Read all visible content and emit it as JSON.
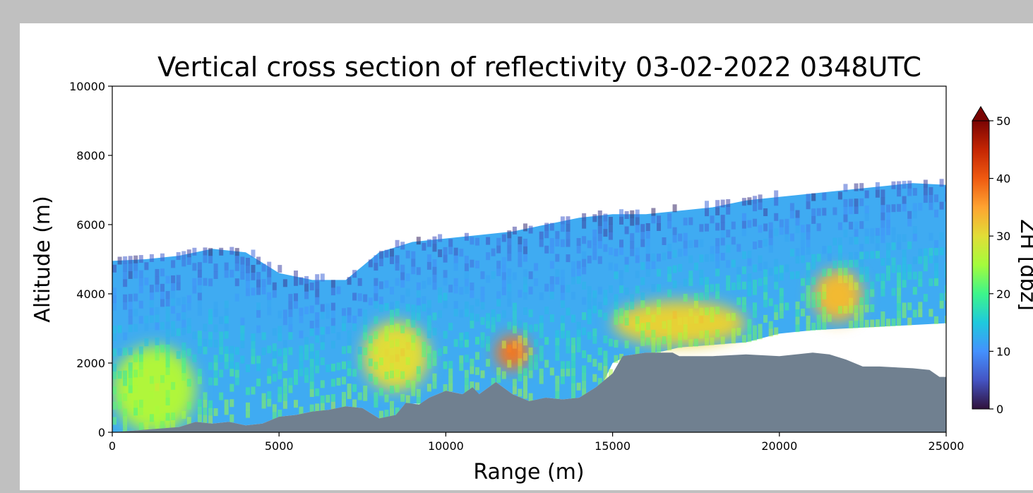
{
  "chart_data": {
    "type": "heatmap",
    "title": "Vertical cross section of reflectivity 03-02-2022 0348UTC",
    "xlabel": "Range (m)",
    "ylabel": "Altitude (m)",
    "xlim": [
      0,
      25000
    ],
    "ylim": [
      0,
      10000
    ],
    "xticks": [
      "0",
      "5000",
      "10000",
      "15000",
      "20000",
      "25000"
    ],
    "yticks": [
      "0",
      "2000",
      "4000",
      "6000",
      "8000",
      "10000"
    ],
    "colorbar": {
      "label": "ZH [dbz]",
      "range": [
        0,
        50
      ],
      "ticks": [
        "0",
        "10",
        "20",
        "30",
        "40",
        "50"
      ],
      "extend": "max",
      "colormap": "turbo",
      "colors": [
        "#30123b",
        "#4454c4",
        "#4491fe",
        "#1fc9dd",
        "#3df58b",
        "#a4fc3c",
        "#e1dd37",
        "#fea331",
        "#ef5a11",
        "#c42503",
        "#7a0403"
      ]
    },
    "terrain_color": "#708090",
    "terrain": [
      [
        0,
        0
      ],
      [
        2000,
        150
      ],
      [
        2500,
        300
      ],
      [
        3000,
        250
      ],
      [
        3500,
        300
      ],
      [
        4000,
        200
      ],
      [
        4500,
        250
      ],
      [
        5000,
        450
      ],
      [
        5500,
        500
      ],
      [
        6000,
        600
      ],
      [
        6500,
        650
      ],
      [
        7000,
        750
      ],
      [
        7500,
        700
      ],
      [
        8000,
        400
      ],
      [
        8500,
        500
      ],
      [
        8800,
        850
      ],
      [
        9200,
        800
      ],
      [
        9500,
        1000
      ],
      [
        10000,
        1200
      ],
      [
        10500,
        1100
      ],
      [
        10800,
        1300
      ],
      [
        11000,
        1100
      ],
      [
        11500,
        1450
      ],
      [
        12000,
        1100
      ],
      [
        12500,
        900
      ],
      [
        13000,
        1000
      ],
      [
        13500,
        950
      ],
      [
        14000,
        1000
      ],
      [
        14500,
        1300
      ],
      [
        15000,
        1700
      ],
      [
        15300,
        2200
      ],
      [
        16000,
        2300
      ],
      [
        16800,
        2300
      ],
      [
        17000,
        2200
      ],
      [
        18000,
        2200
      ],
      [
        19000,
        2250
      ],
      [
        20000,
        2200
      ],
      [
        20500,
        2250
      ],
      [
        21000,
        2300
      ],
      [
        21500,
        2250
      ],
      [
        22000,
        2100
      ],
      [
        22500,
        1900
      ],
      [
        23000,
        1900
      ],
      [
        24000,
        1850
      ],
      [
        24500,
        1800
      ],
      [
        24800,
        1600
      ],
      [
        25000,
        1600
      ]
    ],
    "echo_top": [
      [
        0,
        4950
      ],
      [
        1000,
        5000
      ],
      [
        2000,
        5100
      ],
      [
        3000,
        5300
      ],
      [
        4000,
        5200
      ],
      [
        5000,
        4600
      ],
      [
        6000,
        4400
      ],
      [
        7000,
        4400
      ],
      [
        8000,
        5200
      ],
      [
        9000,
        5500
      ],
      [
        10000,
        5600
      ],
      [
        11000,
        5700
      ],
      [
        12000,
        5800
      ],
      [
        13000,
        6000
      ],
      [
        14000,
        6200
      ],
      [
        15000,
        6300
      ],
      [
        16000,
        6300
      ],
      [
        17000,
        6400
      ],
      [
        18000,
        6500
      ],
      [
        19000,
        6700
      ],
      [
        20000,
        6800
      ],
      [
        21000,
        6900
      ],
      [
        22000,
        7000
      ],
      [
        23000,
        7100
      ],
      [
        24000,
        7200
      ],
      [
        25000,
        7150
      ]
    ],
    "echo_base": [
      [
        15000,
        2000
      ],
      [
        17000,
        2450
      ],
      [
        19000,
        2600
      ],
      [
        20000,
        2850
      ],
      [
        21000,
        2950
      ],
      [
        22000,
        3000
      ],
      [
        23000,
        3050
      ],
      [
        24000,
        3100
      ],
      [
        25000,
        3150
      ]
    ],
    "reflectivity_zones": [
      {
        "range_m": [
          0,
          2500
        ],
        "alt_m": [
          0,
          2500
        ],
        "dbz": 26
      },
      {
        "range_m": [
          7500,
          9500
        ],
        "alt_m": [
          1200,
          3200
        ],
        "dbz": 30
      },
      {
        "range_m": [
          11500,
          12500
        ],
        "alt_m": [
          1800,
          2800
        ],
        "dbz": 38
      },
      {
        "range_m": [
          15000,
          19000
        ],
        "alt_m": [
          2500,
          3800
        ],
        "dbz": 31
      },
      {
        "range_m": [
          21000,
          22500
        ],
        "alt_m": [
          3200,
          4700
        ],
        "dbz": 33
      }
    ]
  }
}
